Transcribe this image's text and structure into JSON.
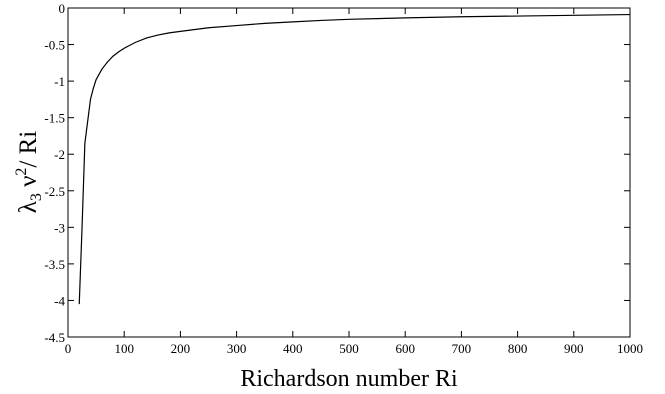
{
  "chart_data": {
    "type": "line",
    "title": "",
    "xlabel": "Richardson number Ri",
    "ylabel": {
      "main": "λ",
      "sub": "3",
      "mid": " ν",
      "sup": "2",
      "tail": "/ Ri"
    },
    "xlim": [
      0,
      1000
    ],
    "ylim": [
      -4.5,
      0
    ],
    "xticks": [
      0,
      100,
      200,
      300,
      400,
      500,
      600,
      700,
      800,
      900,
      1000
    ],
    "yticks": [
      0,
      -0.5,
      -1,
      -1.5,
      -2,
      -2.5,
      -3,
      -3.5,
      -4,
      -4.5
    ],
    "xtick_labels": [
      "0",
      "100",
      "200",
      "300",
      "400",
      "500",
      "600",
      "700",
      "800",
      "900",
      "1000"
    ],
    "ytick_labels": [
      "0",
      "-0.5",
      "-1",
      "-1.5",
      "-2",
      "-2.5",
      "-3",
      "-3.5",
      "-4",
      "-4.5"
    ],
    "grid": false,
    "series": [
      {
        "color": "#000000",
        "x": [
          20,
          25,
          30,
          35,
          40,
          45,
          50,
          60,
          70,
          80,
          90,
          100,
          120,
          140,
          160,
          180,
          200,
          250,
          300,
          350,
          400,
          450,
          500,
          600,
          700,
          800,
          900,
          1000
        ],
        "y": [
          -4.05,
          -3.0,
          -1.85,
          -1.55,
          -1.25,
          -1.1,
          -0.98,
          -0.84,
          -0.74,
          -0.66,
          -0.6,
          -0.55,
          -0.47,
          -0.41,
          -0.37,
          -0.34,
          -0.32,
          -0.27,
          -0.24,
          -0.21,
          -0.19,
          -0.17,
          -0.155,
          -0.135,
          -0.12,
          -0.11,
          -0.1,
          -0.09
        ]
      }
    ]
  }
}
